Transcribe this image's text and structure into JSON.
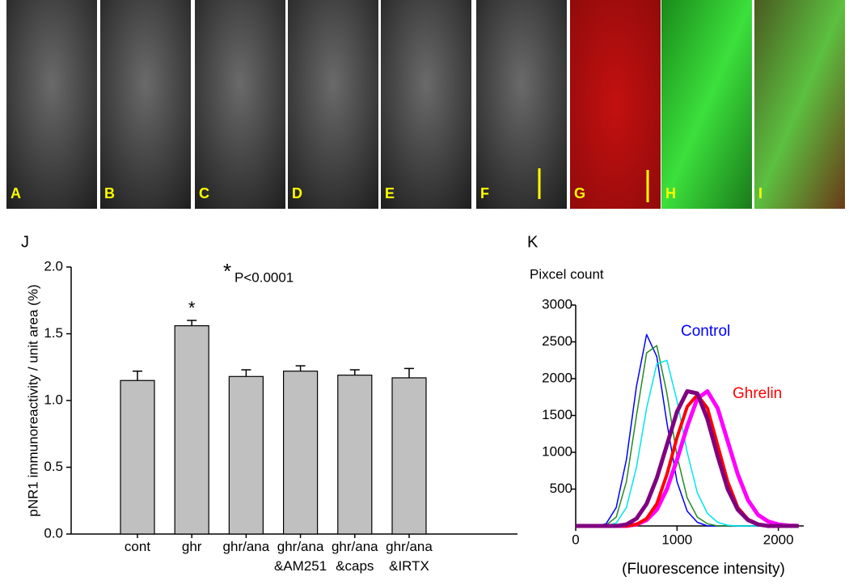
{
  "panels": [
    {
      "label": "A"
    },
    {
      "label": "B"
    },
    {
      "label": "C"
    },
    {
      "label": "D"
    },
    {
      "label": "E"
    },
    {
      "label": "F"
    },
    {
      "label": "G"
    },
    {
      "label": "H"
    },
    {
      "label": "I"
    }
  ],
  "chart_data": [
    {
      "type": "bar",
      "panel_label": "J",
      "annotation_star": "*",
      "annotation": "P<0.0001",
      "y_label": "pNR1 immunoreactivity / unit area (%)",
      "categories": [
        "cont",
        "ghr",
        "ghr/ana",
        "ghr/ana\n&AM251",
        "ghr/ana\n&caps",
        "ghr/ana\n&IRTX"
      ],
      "values": [
        1.15,
        1.56,
        1.18,
        1.22,
        1.19,
        1.17
      ],
      "errors": [
        0.07,
        0.04,
        0.05,
        0.04,
        0.04,
        0.07
      ],
      "markers": [
        null,
        "*",
        null,
        null,
        null,
        null
      ],
      "color": "#c0c0c0",
      "ylim": [
        0,
        2
      ],
      "yticks": [
        {
          "value": 0,
          "label": "0.0"
        },
        {
          "value": 0.5,
          "label": "0.5"
        },
        {
          "value": 1,
          "label": "1.0"
        },
        {
          "value": 1.5,
          "label": "1.5"
        },
        {
          "value": 2,
          "label": "2.0"
        }
      ]
    },
    {
      "type": "line",
      "panel_label": "K",
      "y_label": "Pixcel count",
      "x_label": "(Fluorescence intensity)",
      "x": [
        0,
        100,
        200,
        300,
        400,
        500,
        600,
        700,
        800,
        900,
        1000,
        1100,
        1200,
        1300,
        1400,
        1500,
        1600,
        1700,
        1800,
        1900,
        2000,
        2100,
        2200
      ],
      "series": [
        {
          "color": "#0000ff",
          "width": 1.5,
          "values": [
            0,
            0,
            0,
            30,
            250,
            900,
            1900,
            2600,
            2300,
            1400,
            600,
            200,
            50,
            0,
            0,
            0,
            0,
            0,
            0,
            0,
            0,
            0,
            0
          ]
        },
        {
          "color": "#228b22",
          "width": 1.5,
          "values": [
            0,
            0,
            0,
            10,
            120,
            600,
            1500,
            2350,
            2450,
            1800,
            950,
            380,
            120,
            30,
            0,
            0,
            0,
            0,
            0,
            0,
            0,
            0,
            0
          ]
        },
        {
          "color": "#00e5ee",
          "width": 1.5,
          "values": [
            0,
            0,
            0,
            0,
            40,
            250,
            800,
            1600,
            2200,
            2250,
            1700,
            1000,
            450,
            170,
            50,
            10,
            0,
            0,
            0,
            0,
            0,
            0,
            0
          ]
        },
        {
          "color": "#ff00ff",
          "width": 5,
          "values": [
            0,
            0,
            0,
            0,
            0,
            0,
            20,
            80,
            220,
            500,
            900,
            1350,
            1730,
            1830,
            1600,
            1150,
            700,
            350,
            150,
            60,
            20,
            5,
            0
          ]
        },
        {
          "color": "#ff0000",
          "width": 4,
          "values": [
            0,
            0,
            0,
            0,
            0,
            0,
            20,
            100,
            300,
            700,
            1200,
            1620,
            1780,
            1600,
            1100,
            600,
            250,
            90,
            25,
            0,
            0,
            0,
            0
          ]
        },
        {
          "color": "#800080",
          "width": 5,
          "values": [
            0,
            0,
            0,
            0,
            0,
            20,
            100,
            300,
            650,
            1100,
            1550,
            1830,
            1800,
            1450,
            950,
            500,
            220,
            80,
            20,
            0,
            0,
            0,
            0
          ]
        }
      ],
      "annotations": [
        {
          "text": "Control",
          "color": "#0000ff"
        },
        {
          "text": "Ghrelin",
          "color": "#ff0000"
        }
      ],
      "xlim": [
        0,
        2250
      ],
      "xticks": [
        0,
        1000,
        2000
      ],
      "ylim": [
        0,
        3000
      ],
      "yticks": [
        500,
        1000,
        1500,
        2000,
        2500,
        3000
      ]
    }
  ]
}
